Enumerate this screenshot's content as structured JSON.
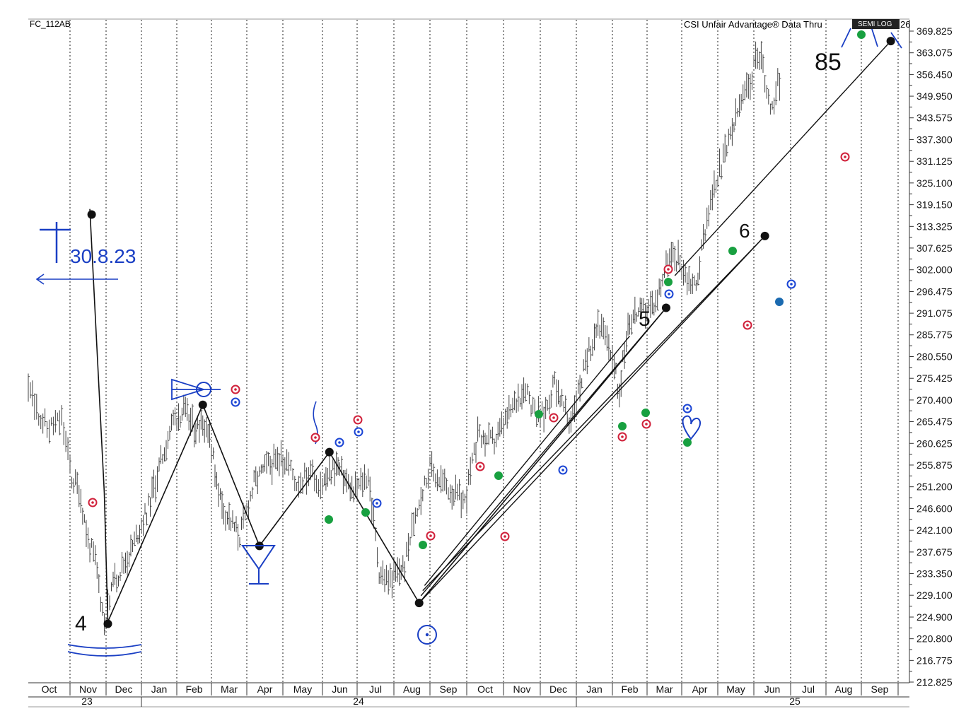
{
  "header": {
    "symbol": "FC_112AB",
    "source": "CSI Unfair Advantage® Data Thru",
    "source_tail": "26",
    "scale_badge": "SEMI LOG"
  },
  "chart_data": {
    "type": "bar",
    "scale": "log",
    "ylim": [
      211.6,
      372.5
    ],
    "y_ticks": [
      369.825,
      363.075,
      356.45,
      349.95,
      343.575,
      337.3,
      331.125,
      325.1,
      319.15,
      313.325,
      307.625,
      302.0,
      296.475,
      291.075,
      285.775,
      280.55,
      275.425,
      270.4,
      265.475,
      260.625,
      255.875,
      251.2,
      246.6,
      242.1,
      237.675,
      233.35,
      229.1,
      224.9,
      220.8,
      216.775,
      212.825
    ],
    "y_tick_labels": [
      "369.825",
      "363.075",
      "356.450",
      "349.950",
      "343.575",
      "337.300",
      "331.125",
      "325.100",
      "319.150",
      "313.325",
      "307.625",
      "302.000",
      "296.475",
      "291.075",
      "285.775",
      "280.550",
      "275.425",
      "270.400",
      "265.475",
      "260.625",
      "255.875",
      "251.200",
      "246.600",
      "242.100",
      "237.675",
      "233.350",
      "229.100",
      "224.900",
      "220.800",
      "216.775",
      "212.825"
    ],
    "x_months": [
      "Oct",
      "Nov",
      "Dec",
      "Jan",
      "Feb",
      "Mar",
      "Apr",
      "May",
      "Jun",
      "Jul",
      "Aug",
      "Sep",
      "Oct",
      "Nov",
      "Dec",
      "Jan",
      "Feb",
      "Mar",
      "Apr",
      "May",
      "Jun",
      "Jul",
      "Aug",
      "Sep"
    ],
    "x_years": [
      "23",
      "24",
      "25"
    ],
    "series": [
      {
        "style": "ohlc-bars",
        "color": "#444444",
        "anchors": [
          [
            0,
            272
          ],
          [
            0.45,
            264
          ],
          [
            0.8,
            266
          ],
          [
            1.05,
            253
          ],
          [
            1.25,
            251
          ],
          [
            1.5,
            240
          ],
          [
            1.7,
            236
          ],
          [
            1.95,
            224
          ],
          [
            2.25,
            232
          ],
          [
            2.7,
            238
          ],
          [
            3.2,
            247
          ],
          [
            3.6,
            258
          ],
          [
            3.9,
            266
          ],
          [
            4.2,
            268
          ],
          [
            4.5,
            264
          ],
          [
            4.85,
            265
          ],
          [
            5.3,
            247
          ],
          [
            5.8,
            241
          ],
          [
            6.2,
            252
          ],
          [
            6.6,
            256
          ],
          [
            7.1,
            257
          ],
          [
            7.35,
            252
          ],
          [
            7.65,
            254
          ],
          [
            8.0,
            252
          ],
          [
            8.4,
            256
          ],
          [
            8.9,
            250
          ],
          [
            9.3,
            254
          ],
          [
            9.6,
            234
          ],
          [
            9.85,
            232
          ],
          [
            10.3,
            235
          ],
          [
            10.6,
            246
          ],
          [
            11.0,
            255
          ],
          [
            11.5,
            251
          ],
          [
            11.95,
            248
          ],
          [
            12.3,
            262
          ],
          [
            12.75,
            261
          ],
          [
            13.2,
            268
          ],
          [
            13.6,
            274
          ],
          [
            13.85,
            267
          ],
          [
            14.1,
            267
          ],
          [
            14.4,
            275
          ],
          [
            14.8,
            265
          ],
          [
            15.3,
            280
          ],
          [
            15.6,
            289
          ],
          [
            15.95,
            282
          ],
          [
            16.2,
            272
          ],
          [
            16.45,
            289
          ],
          [
            16.65,
            291
          ],
          [
            17.0,
            292
          ],
          [
            17.25,
            294
          ],
          [
            17.6,
            305
          ],
          [
            17.9,
            305
          ],
          [
            18.15,
            300
          ],
          [
            18.4,
            298
          ],
          [
            18.7,
            316
          ],
          [
            19.0,
            327
          ],
          [
            19.3,
            336
          ],
          [
            19.6,
            347
          ],
          [
            19.85,
            353
          ],
          [
            20.05,
            360
          ],
          [
            20.2,
            362
          ],
          [
            20.35,
            353
          ],
          [
            20.5,
            345
          ],
          [
            20.65,
            357
          ],
          [
            20.75,
            353
          ]
        ]
      }
    ],
    "annotations": {
      "wave_labels": [
        "4",
        "5",
        "6",
        "85"
      ],
      "date_note": "30.8.23"
    }
  }
}
